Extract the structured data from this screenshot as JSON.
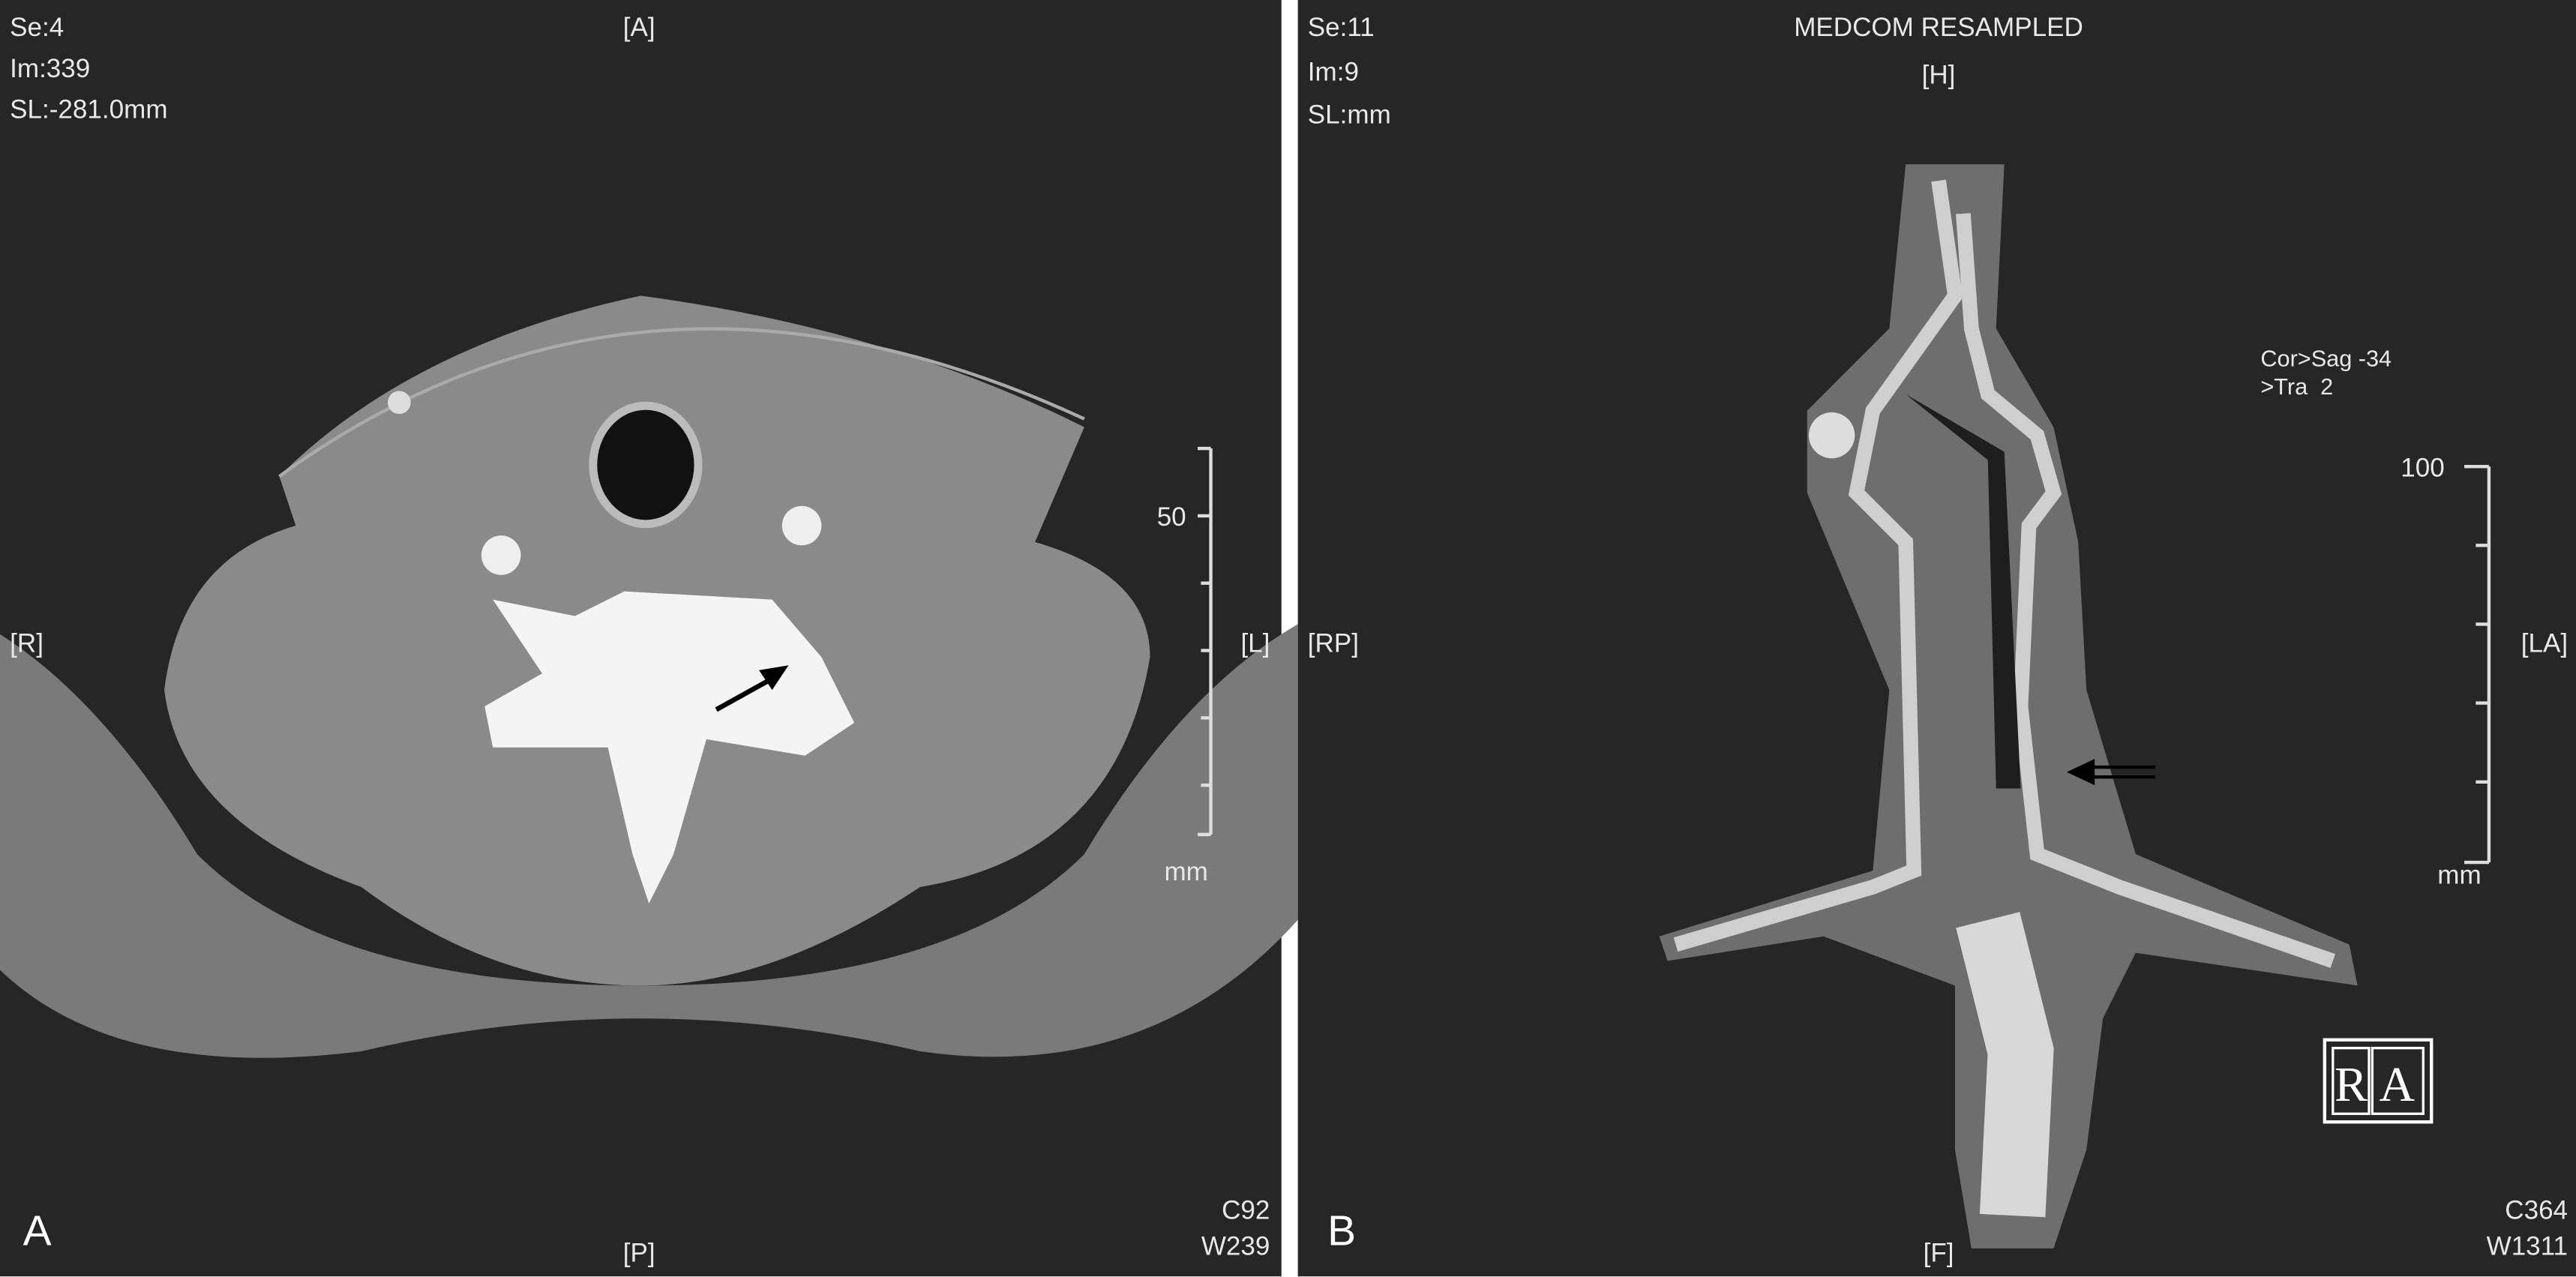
{
  "panels": [
    {
      "letter": "A",
      "info": [
        "Se:4",
        "Im:339",
        "SL:-281.0mm"
      ],
      "orientation": {
        "top": "[A]",
        "bottom": "[P]",
        "left": "[R]",
        "right": "[L]"
      },
      "window": [
        "C92",
        "W239"
      ],
      "scale": {
        "label": "50",
        "unit": "mm"
      }
    },
    {
      "letter": "B",
      "header": "MEDCOM RESAMPLED",
      "info": [
        "Se:11",
        "Im:9",
        "SL:mm"
      ],
      "orientation": {
        "top": "[H]",
        "bottom": "[F]",
        "left": "[RP]",
        "right": "[LA]"
      },
      "view": [
        "Cor>Sag -34",
        ">Tra  2"
      ],
      "window": [
        "C364",
        "W1311"
      ],
      "scale": {
        "label": "100",
        "unit": "mm"
      },
      "marker": [
        "R",
        "A"
      ]
    }
  ]
}
